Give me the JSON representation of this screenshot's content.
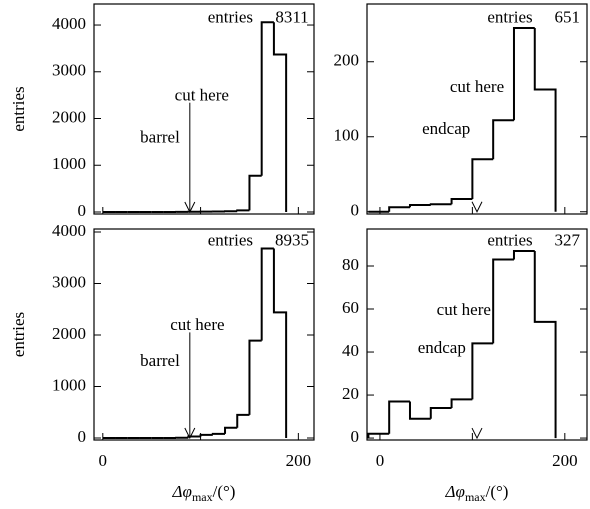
{
  "chart_data": [
    {
      "type": "histogram",
      "xlim": [
        -9,
        216
      ],
      "ylim": [
        -43,
        4450
      ],
      "yticks": [
        0,
        1000,
        2000,
        3000,
        4000
      ],
      "xtick_marks": [
        0,
        100,
        200
      ],
      "bins": [
        0,
        12.5,
        25,
        37.5,
        50,
        62.5,
        75,
        87.5,
        100,
        112.5,
        125,
        137.5,
        150,
        162.5,
        175,
        187.5
      ],
      "values": [
        0,
        0,
        0,
        0,
        0,
        0,
        3,
        5,
        8,
        10,
        15,
        35,
        775,
        4060,
        3370
      ],
      "color": "#000000",
      "ylabel": "entries",
      "entries_label": "entries",
      "entries": 8311,
      "cut_label": "cut here",
      "region": "barrel",
      "cut": 89
    },
    {
      "type": "histogram",
      "xlim": [
        -14,
        224
      ],
      "ylim": [
        -3,
        277
      ],
      "yticks": [
        0,
        100,
        200
      ],
      "xtick_marks": [
        0,
        100,
        200
      ],
      "bins": [
        -12.5,
        10,
        32.5,
        55,
        77.5,
        100,
        122.5,
        145,
        167.5,
        190
      ],
      "values": [
        0,
        6,
        9,
        10,
        17,
        70,
        122,
        245,
        163
      ],
      "color": "#000000",
      "entries_label": "entries",
      "entries": 651,
      "cut_label": "cut here",
      "region": "endcap",
      "cut": 105
    },
    {
      "type": "histogram",
      "xlim": [
        -9,
        216
      ],
      "ylim": [
        -39,
        4058
      ],
      "yticks": [
        0,
        1000,
        2000,
        3000,
        4000
      ],
      "xticks": [
        0,
        200
      ],
      "xtick_marks": [
        100
      ],
      "bins": [
        0,
        12.5,
        25,
        37.5,
        50,
        62.5,
        75,
        87.5,
        100,
        112.5,
        125,
        137.5,
        150,
        162.5,
        175,
        187.5
      ],
      "values": [
        0,
        0,
        0,
        0,
        0,
        0,
        5,
        30,
        60,
        80,
        200,
        450,
        1890,
        3680,
        2440
      ],
      "color": "#000000",
      "ylabel": "entries",
      "xlabel": {
        "main": "Δφ",
        "sub": "max",
        "unit": "/(°)"
      },
      "entries_label": "entries",
      "entries": 8935,
      "cut_label": "cut here",
      "region": "barrel",
      "cut": 89
    },
    {
      "type": "histogram",
      "xlim": [
        -14,
        224
      ],
      "ylim": [
        -0.9,
        97.2
      ],
      "yticks": [
        0,
        20,
        40,
        60,
        80
      ],
      "xticks": [
        0,
        200
      ],
      "xtick_marks": [
        100
      ],
      "bins": [
        -12.5,
        10,
        32.5,
        55,
        77.5,
        100,
        122.5,
        145,
        167.5,
        190
      ],
      "values": [
        2,
        17,
        9,
        14,
        18,
        44,
        83,
        87,
        54
      ],
      "color": "#000000",
      "xlabel": {
        "main": "Δφ",
        "sub": "max",
        "unit": "/(°)"
      },
      "entries_label": "entries",
      "entries": 327,
      "cut_label": "cut here",
      "region": "endcap",
      "cut": 105
    }
  ]
}
